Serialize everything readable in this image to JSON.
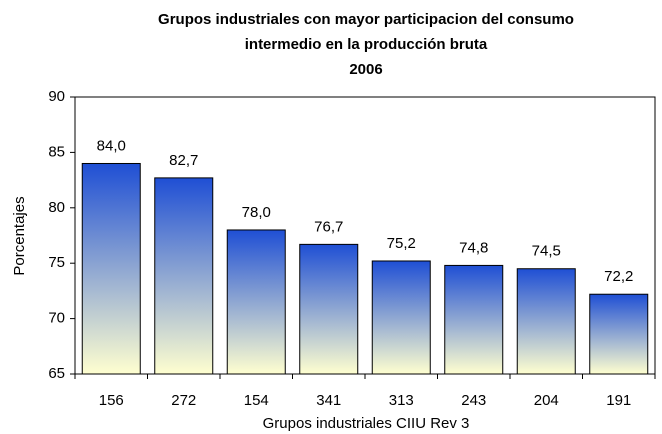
{
  "chart_data": {
    "type": "bar",
    "title": [
      "Grupos industriales  con mayor participacion del consumo",
      "intermedio en la producción bruta",
      "2006"
    ],
    "x_label": "Grupos industriales CIIU Rev 3",
    "y_label": "Porcentajes",
    "categories": [
      "156",
      "272",
      "154",
      "341",
      "313",
      "243",
      "204",
      "191"
    ],
    "values": [
      84.0,
      82.7,
      78.0,
      76.7,
      75.2,
      74.8,
      74.5,
      72.2
    ],
    "value_labels": [
      "84,0",
      "82,7",
      "78,0",
      "76,7",
      "75,2",
      "74,8",
      "74,5",
      "72,2"
    ],
    "gradient": [
      "#1f4fd4",
      "#ffffd0"
    ],
    "ylim": [
      65,
      90
    ],
    "yticks": [
      65,
      70,
      75,
      80,
      85,
      90
    ],
    "grid": false
  }
}
